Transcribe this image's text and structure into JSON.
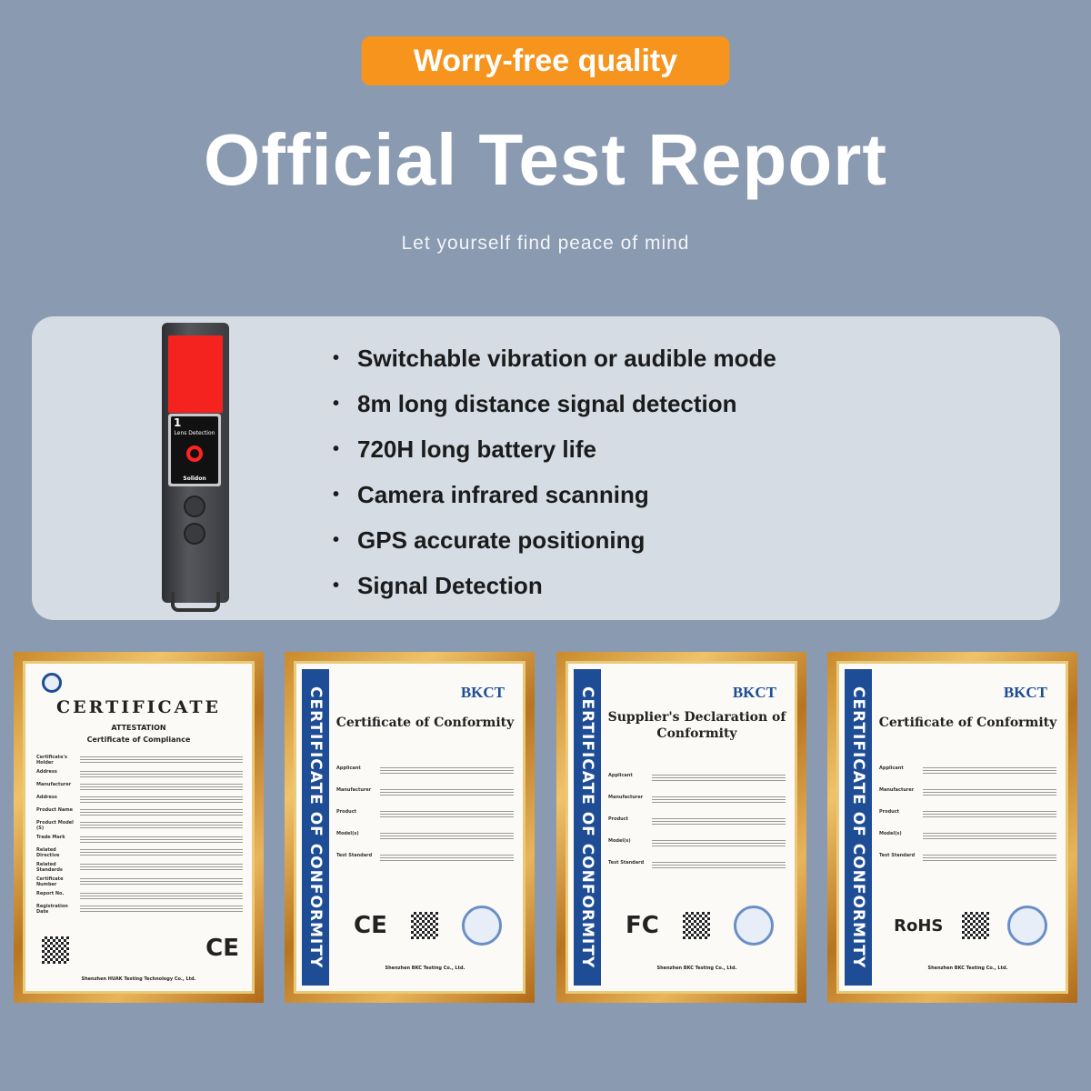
{
  "badge": "Worry-free quality",
  "title": "Official Test Report",
  "subtitle": "Let yourself find peace of mind",
  "device": {
    "screen_number": "1",
    "screen_label": "Lens Detection",
    "brand": "Solidon"
  },
  "features": [
    "Switchable vibration or audible mode",
    "8m long distance signal detection",
    "720H long battery life",
    "Camera infrared scanning",
    "GPS accurate positioning",
    "Signal Detection"
  ],
  "colors": {
    "background": "#8a9ab1",
    "badge": "#f7941d",
    "panel": "#d6dce4",
    "band": "#1e4d95"
  },
  "certificates": [
    {
      "heading": "CERTIFICATE",
      "subheading": "ATTESTATION",
      "subheading2": "Certificate of Compliance",
      "fields": [
        "Certificate's Holder",
        "Address",
        "Manufacturer",
        "Address",
        "Product Name",
        "Product Model (S)",
        "Trade Mark",
        "Related Directive",
        "Related Standards",
        "Certificate Number",
        "Report No.",
        "Registration Date"
      ],
      "mark": "CE",
      "footer": "Shenzhen HUAK Testing Technology Co., Ltd."
    },
    {
      "band": "CERTIFICATE OF CONFORMITY",
      "logo": "BKCT",
      "heading": "Certificate of Conformity",
      "fields": [
        "Applicant",
        "Manufacturer",
        "Product",
        "Model(s)",
        "Test Standard"
      ],
      "mark": "CE",
      "footer": "Shenzhen BKC Testing Co., Ltd."
    },
    {
      "band": "CERTIFICATE OF CONFORMITY",
      "logo": "BKCT",
      "heading": "Supplier's Declaration of Conformity",
      "fields": [
        "Applicant",
        "Manufacturer",
        "Product",
        "Model(s)",
        "Test Standard"
      ],
      "mark": "FC",
      "footer": "Shenzhen BKC Testing Co., Ltd."
    },
    {
      "band": "CERTIFICATE OF CONFORMITY",
      "logo": "BKCT",
      "heading": "Certificate of Conformity",
      "fields": [
        "Applicant",
        "Manufacturer",
        "Product",
        "Model(s)",
        "Test Standard"
      ],
      "mark": "RoHS",
      "footer": "Shenzhen BKC Testing Co., Ltd."
    }
  ]
}
